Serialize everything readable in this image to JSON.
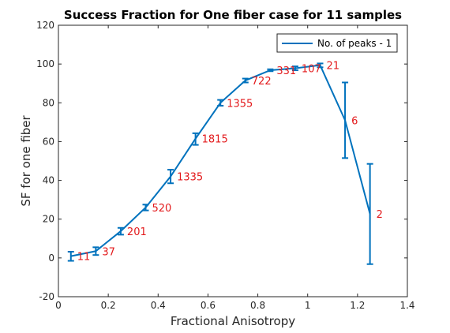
{
  "chart_data": {
    "type": "line",
    "title": "Success Fraction for One fiber case for 11 samples",
    "xlabel": "Fractional Anisotropy",
    "ylabel": "SF for one fiber",
    "xlim": [
      0,
      1.4
    ],
    "ylim": [
      -20,
      120
    ],
    "xticks": [
      "0",
      "0.2",
      "0.4",
      "0.6",
      "0.8",
      "1",
      "1.2",
      "1.4"
    ],
    "xtick_values": [
      0,
      0.2,
      0.4,
      0.6,
      0.8,
      1.0,
      1.2,
      1.4
    ],
    "yticks": [
      "-20",
      "0",
      "20",
      "40",
      "60",
      "80",
      "100",
      "120"
    ],
    "ytick_values": [
      -20,
      0,
      20,
      40,
      60,
      80,
      100,
      120
    ],
    "grid": false,
    "legend_position": "top-right",
    "series": [
      {
        "name": "No. of peaks - 1",
        "color": "#0072bd",
        "x": [
          0.05,
          0.15,
          0.25,
          0.35,
          0.45,
          0.55,
          0.65,
          0.75,
          0.85,
          0.95,
          1.05,
          1.15,
          1.25
        ],
        "y": [
          0.9,
          3.5,
          13.8,
          26.0,
          42.0,
          61.5,
          80.0,
          91.5,
          96.8,
          97.8,
          99.4,
          71.0,
          22.7
        ],
        "err_low": [
          -1.5,
          1.5,
          12.0,
          24.5,
          38.5,
          58.3,
          78.5,
          90.5,
          96.3,
          96.8,
          98.3,
          51.5,
          -3.2
        ],
        "err_high": [
          3.2,
          5.5,
          15.5,
          27.5,
          45.5,
          64.3,
          81.5,
          92.5,
          97.3,
          98.8,
          100.3,
          90.5,
          48.5
        ]
      }
    ],
    "annotations": [
      {
        "text": "11",
        "x": 0.05
      },
      {
        "text": "37",
        "x": 0.15
      },
      {
        "text": "201",
        "x": 0.25
      },
      {
        "text": "520",
        "x": 0.35
      },
      {
        "text": "1335",
        "x": 0.45
      },
      {
        "text": "1815",
        "x": 0.55
      },
      {
        "text": "1355",
        "x": 0.65
      },
      {
        "text": "722",
        "x": 0.75
      },
      {
        "text": "331",
        "x": 0.85
      },
      {
        "text": "107",
        "x": 0.95
      },
      {
        "text": "21",
        "x": 1.05
      },
      {
        "text": "6",
        "x": 1.15
      },
      {
        "text": "2",
        "x": 1.25
      }
    ],
    "annotation_color": "#e31a1c"
  }
}
